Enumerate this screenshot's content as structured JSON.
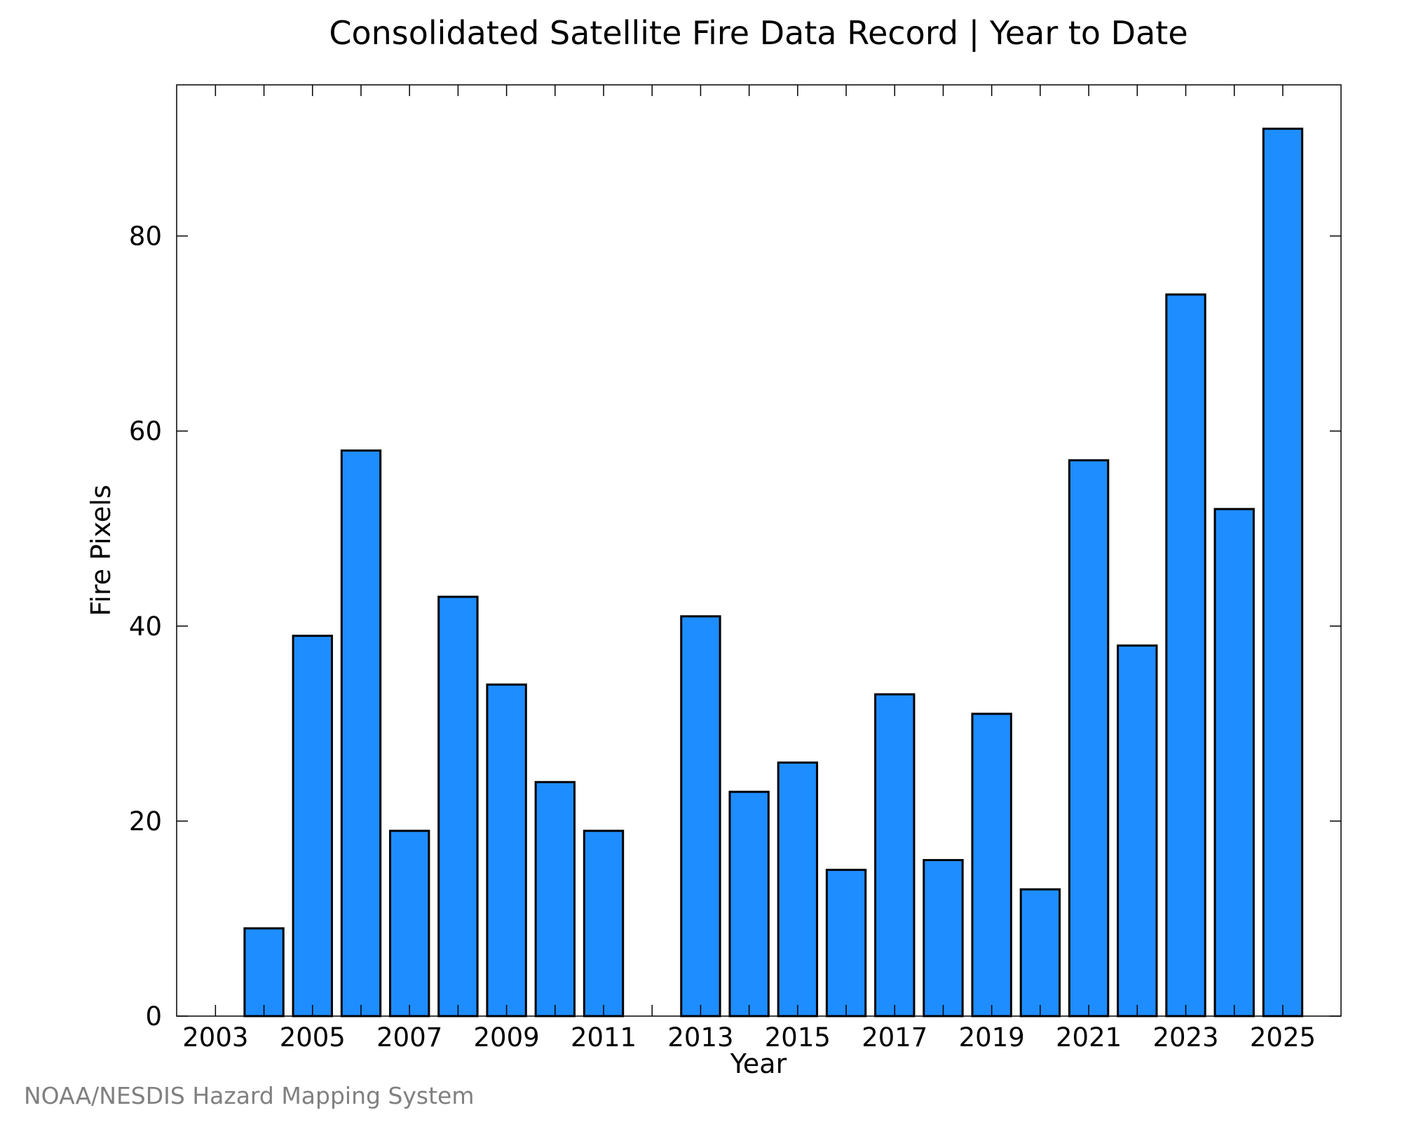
{
  "colors": {
    "bar_fill": "#1e8dff",
    "bar_stroke": "#000000",
    "axis": "#000000",
    "credit_text": "#808080",
    "background": "#ffffff"
  },
  "credit": "NOAA/NESDIS Hazard Mapping System",
  "chart_data": {
    "type": "bar",
    "title": "Consolidated Satellite Fire Data Record | Year to Date",
    "xlabel": "Year",
    "ylabel": "Fire Pixels",
    "categories": [
      "2003",
      "2004",
      "2005",
      "2006",
      "2007",
      "2008",
      "2009",
      "2010",
      "2011",
      "2012",
      "2013",
      "2014",
      "2015",
      "2016",
      "2017",
      "2018",
      "2019",
      "2020",
      "2021",
      "2022",
      "2023",
      "2024",
      "2025"
    ],
    "values": [
      0,
      9,
      39,
      58,
      19,
      43,
      34,
      24,
      19,
      0,
      41,
      23,
      26,
      15,
      33,
      16,
      31,
      13,
      57,
      38,
      74,
      52,
      91
    ],
    "x_tick_labels": [
      "2003",
      "2005",
      "2007",
      "2009",
      "2011",
      "2013",
      "2015",
      "2017",
      "2019",
      "2021",
      "2023",
      "2025"
    ],
    "y_ticks": [
      0,
      20,
      40,
      60,
      80
    ],
    "xlim": [
      2002.2,
      2026.2
    ],
    "ylim": [
      0,
      95.5
    ],
    "grid": false,
    "legend": "none"
  }
}
